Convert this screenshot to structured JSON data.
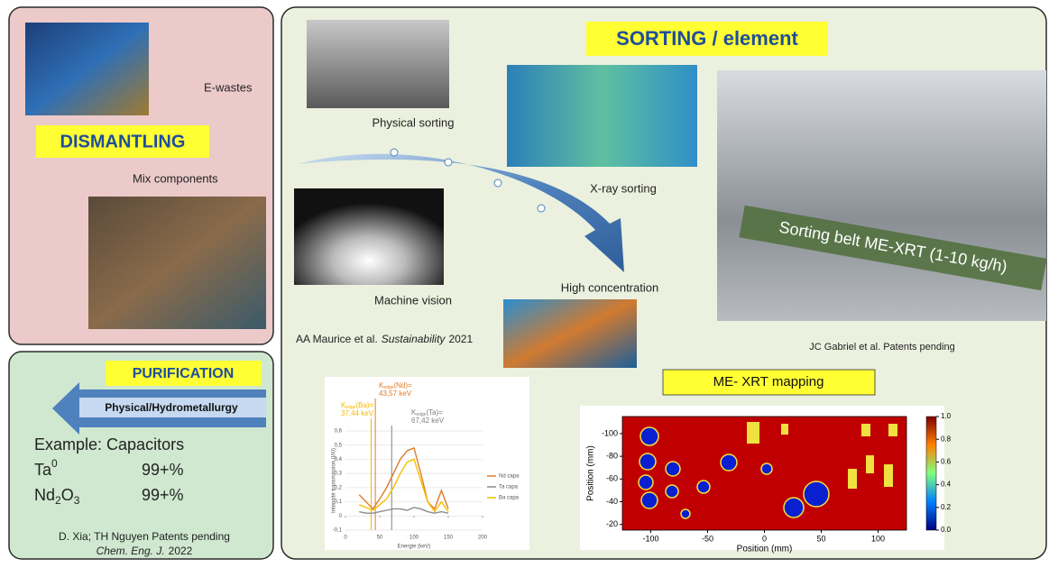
{
  "dismantling": {
    "title": "DISMANTLING",
    "labels": [
      "E-wastes",
      "Mix components"
    ]
  },
  "purification": {
    "title": "PURIFICATION",
    "arrow_label": "Physical/Hydrometallurgy",
    "example": "Example: Capacitors",
    "results": [
      {
        "parts": [
          "Ta",
          "0"
        ],
        "purity": "99+%"
      },
      {
        "parts": [
          "Nd",
          "2",
          "O",
          "3"
        ],
        "purity": "99+%"
      }
    ],
    "citation": {
      "authors": "D. Xia; TH Nguyen Patents pending",
      "journal": "Chem. Eng. J.",
      "year": "2022"
    }
  },
  "sorting": {
    "title": "SORTING / element",
    "labels": [
      "Physical sorting",
      "X-ray sorting",
      "Machine vision",
      "High concentration"
    ],
    "belt_label": "Sorting belt ME-XRT (1-10 kg/h)",
    "citation_left": {
      "authors": "AA Maurice et al.",
      "journal": "Sustainability",
      "year": "2021"
    },
    "citation_right": "JC Gabriel et al. Patents pending",
    "mapping_title": "ME- XRT mapping"
  },
  "chart_data": [
    {
      "type": "line",
      "x_label": "Energie (keV)",
      "y_label": "Intensité transmission (I/I0)",
      "xlim": [
        0,
        200
      ],
      "xticks": [
        0,
        50,
        100,
        150,
        200
      ],
      "ylim": [
        -0.1,
        0.6
      ],
      "yticks": [
        {
          "value": -0.1,
          "label": "-0,1"
        },
        0,
        {
          "value": 0.1,
          "label": "0,1"
        },
        {
          "value": 0.2,
          "label": "0,2"
        },
        {
          "value": 0.3,
          "label": "0,3"
        },
        {
          "value": 0.4,
          "label": "0,4"
        },
        {
          "value": 0.5,
          "label": "0,5"
        },
        {
          "value": 0.6,
          "label": "0,6"
        }
      ],
      "edges": [
        {
          "symbol": "K",
          "subscript": "edge",
          "element": "(Ba)=",
          "value": 37.44,
          "label": "37,44 keV",
          "color": "#f5b800"
        },
        {
          "symbol": "K",
          "subscript": "edge",
          "element": "(Nd)=",
          "value": 43.57,
          "label": "43,57 keV",
          "color": "#e07b28"
        },
        {
          "symbol": "K",
          "subscript": "edge",
          "element": "(Ta)=",
          "value": 67.42,
          "label": "67,42 keV",
          "color": "#808080"
        }
      ],
      "x": [
        20,
        30,
        40,
        50,
        60,
        70,
        80,
        90,
        100,
        110,
        120,
        130,
        140,
        150
      ],
      "series": [
        {
          "name": "Nd capa",
          "color": "#e07b28",
          "values": [
            0.15,
            0.1,
            0.05,
            0.12,
            0.2,
            0.3,
            0.4,
            0.46,
            0.48,
            0.3,
            0.1,
            0.05,
            0.18,
            0.05
          ]
        },
        {
          "name": "Ta capa",
          "color": "#8c8c8c",
          "values": [
            0.03,
            0.02,
            0.02,
            0.03,
            0.04,
            0.05,
            0.05,
            0.04,
            0.06,
            0.05,
            0.03,
            0.02,
            0.03,
            0.02
          ]
        },
        {
          "name": "Ba capa",
          "color": "#f5c000",
          "values": [
            0.08,
            0.06,
            0.04,
            0.08,
            0.12,
            0.2,
            0.3,
            0.38,
            0.4,
            0.25,
            0.1,
            0.03,
            0.1,
            0.03
          ]
        }
      ]
    },
    {
      "type": "heatmap",
      "x_label": "Position (mm)",
      "y_label": "Position (mm)",
      "xlim": [
        -125,
        125
      ],
      "xticks": [
        -100,
        -50,
        0,
        50,
        100
      ],
      "ylim": [
        -115,
        -15
      ],
      "yticks": [
        -100,
        -80,
        -60,
        -40,
        -20
      ],
      "colorbar_lim": [
        0,
        1
      ],
      "colorbar_ticks": [
        {
          "value": 0,
          "label": "0.0"
        },
        0.2,
        0.4,
        0.6,
        0.8,
        {
          "value": 1,
          "label": "1.0"
        }
      ]
    }
  ]
}
